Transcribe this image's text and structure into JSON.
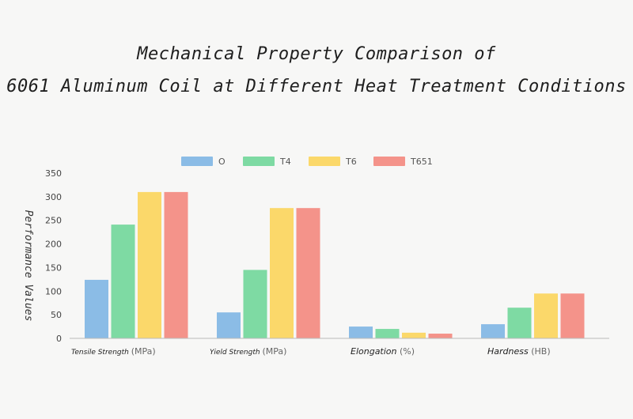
{
  "title_line1": "Mechanical Property Comparison of",
  "title_line2": "6061 Aluminum Coil at Different Heat Treatment Conditions",
  "chart_data": {
    "type": "bar",
    "title": "Mechanical Property Comparison of 6061 Aluminum Coil at Different Heat Treatment Conditions",
    "ylabel": "Performance Values",
    "xlabel": "",
    "ylim": [
      0,
      350
    ],
    "yticks": [
      "0",
      "50",
      "100",
      "150",
      "200",
      "250",
      "300",
      "350"
    ],
    "legend_position": "top-center",
    "grid": false,
    "categories": [
      {
        "main": "Tensile Strength",
        "unit": "(MPa)"
      },
      {
        "main": "Yield Strength",
        "unit": "(MPa)"
      },
      {
        "main": "Elongation",
        "unit": "(%)"
      },
      {
        "main": "Hardness",
        "unit": "(HB)"
      }
    ],
    "series": [
      {
        "name": "O",
        "color": "#8bbce6",
        "values": [
          124,
          55,
          25,
          30
        ]
      },
      {
        "name": "T4",
        "color": "#7edaa3",
        "values": [
          241,
          145,
          20,
          65
        ]
      },
      {
        "name": "T6",
        "color": "#fbd86a",
        "values": [
          310,
          276,
          12,
          95
        ]
      },
      {
        "name": "T651",
        "color": "#f4938a",
        "values": [
          310,
          276,
          10,
          95
        ]
      }
    ]
  }
}
